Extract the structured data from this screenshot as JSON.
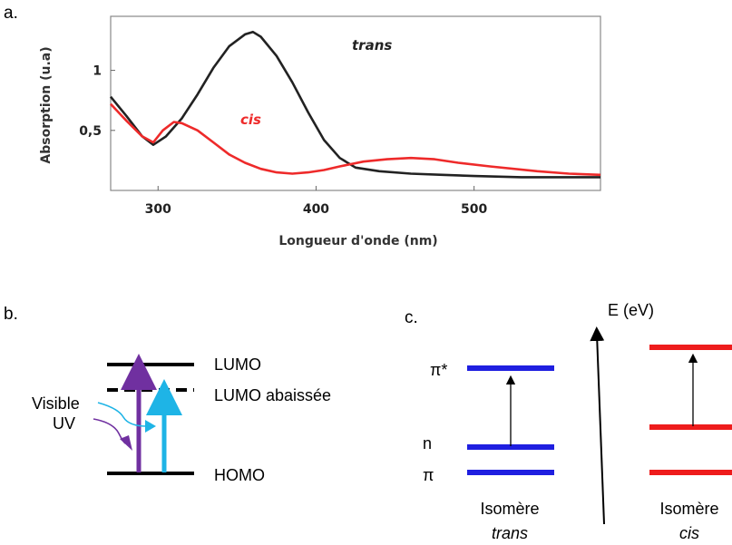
{
  "panel_labels": {
    "a": "a.",
    "b": "b.",
    "c": "c."
  },
  "chart_data": {
    "type": "line",
    "xlabel": "Longueur d'onde (nm)",
    "ylabel": "Absorption (u.a)",
    "xlim": [
      270,
      580
    ],
    "ylim": [
      0,
      1.45
    ],
    "xticks": [
      300,
      400,
      500
    ],
    "yticks": [
      0.5,
      1
    ],
    "ytick_labels": [
      "0,5",
      "1"
    ],
    "grid": false,
    "series": [
      {
        "name": "trans",
        "color": "#222222",
        "x": [
          270,
          280,
          290,
          297,
          305,
          315,
          325,
          335,
          345,
          355,
          360,
          365,
          375,
          385,
          395,
          405,
          415,
          425,
          440,
          460,
          480,
          500,
          530,
          560,
          580
        ],
        "y": [
          0.78,
          0.62,
          0.45,
          0.38,
          0.45,
          0.6,
          0.8,
          1.02,
          1.2,
          1.3,
          1.32,
          1.28,
          1.12,
          0.9,
          0.65,
          0.42,
          0.27,
          0.19,
          0.16,
          0.14,
          0.13,
          0.12,
          0.11,
          0.11,
          0.11
        ]
      },
      {
        "name": "cis",
        "color": "#ee2a2a",
        "x": [
          270,
          280,
          290,
          297,
          303,
          310,
          315,
          325,
          335,
          345,
          355,
          365,
          375,
          385,
          395,
          405,
          415,
          430,
          445,
          460,
          475,
          490,
          510,
          540,
          560,
          580
        ],
        "y": [
          0.72,
          0.58,
          0.45,
          0.4,
          0.5,
          0.57,
          0.56,
          0.5,
          0.4,
          0.3,
          0.23,
          0.18,
          0.15,
          0.14,
          0.15,
          0.17,
          0.2,
          0.24,
          0.26,
          0.27,
          0.26,
          0.23,
          0.2,
          0.16,
          0.14,
          0.13
        ]
      }
    ]
  },
  "diagram_b": {
    "lumo": "LUMO",
    "lumo_lowered": "LUMO abaissée",
    "homo": "HOMO",
    "visible": "Visible",
    "uv": "UV",
    "colors": {
      "uv_arrow": "#7030a0",
      "visible_arrow": "#1eb4e6"
    }
  },
  "diagram_c": {
    "energy_axis": "E (eV)",
    "pi_star": "π*",
    "n": "n",
    "pi": "π",
    "isomer_word": "Isomère",
    "trans": "trans",
    "cis": "cis",
    "colors": {
      "trans_levels": "#1f1fe0",
      "cis_levels": "#ee1c1c"
    }
  }
}
